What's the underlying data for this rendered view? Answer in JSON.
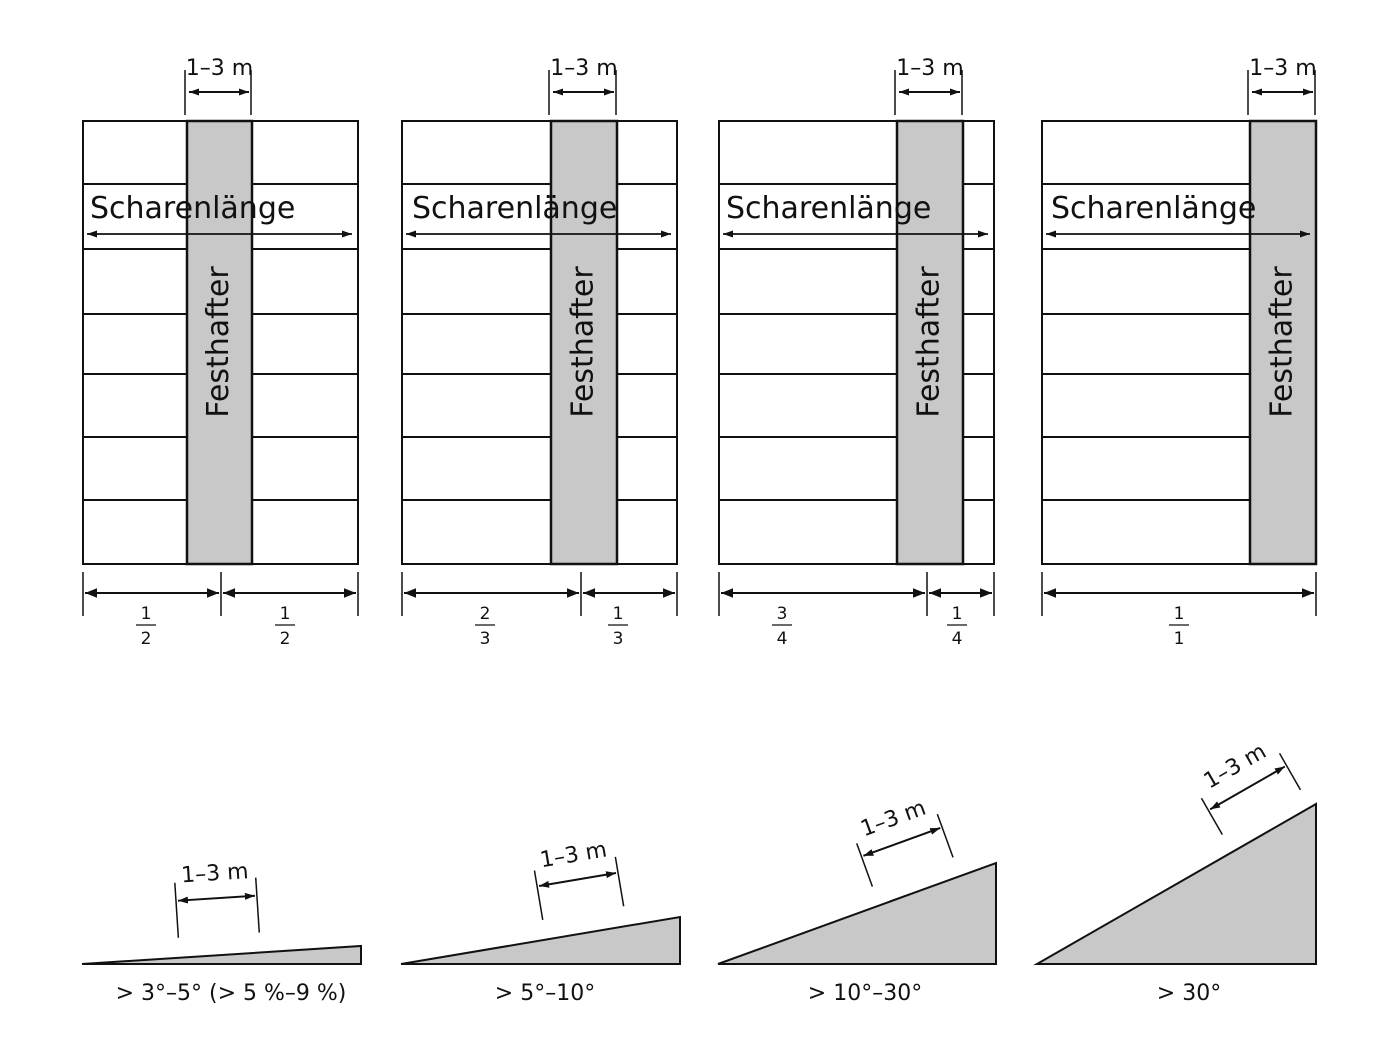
{
  "panels": [
    {
      "scharen_label": "Scharenlänge",
      "festhafter_label": "Festhafter",
      "width_label": "1–3 m",
      "fractions": [
        {
          "num": "1",
          "den": "2"
        },
        {
          "num": "1",
          "den": "2"
        }
      ]
    },
    {
      "scharen_label": "Scharenlänge",
      "festhafter_label": "Festhafter",
      "width_label": "1–3 m",
      "fractions": [
        {
          "num": "2",
          "den": "3"
        },
        {
          "num": "1",
          "den": "3"
        }
      ]
    },
    {
      "scharen_label": "Scharenlänge",
      "festhafter_label": "Festhafter",
      "width_label": "1–3 m",
      "fractions": [
        {
          "num": "3",
          "den": "4"
        },
        {
          "num": "1",
          "den": "4"
        }
      ]
    },
    {
      "scharen_label": "Scharenlänge",
      "festhafter_label": "Festhafter",
      "width_label": "1–3 m",
      "fractions": [
        {
          "num": "1",
          "den": "1"
        }
      ]
    }
  ],
  "slopes": [
    {
      "measure_label": "1–3 m",
      "caption": "> 3°–5° (> 5 %–9 %)"
    },
    {
      "measure_label": "1–3 m",
      "caption": "> 5°–10°"
    },
    {
      "measure_label": "1–3 m",
      "caption": "> 10°–30°"
    },
    {
      "measure_label": "1–3 m",
      "caption": "> 30°"
    }
  ],
  "colors": {
    "stroke": "#111111",
    "fill_gray": "#c8c8c8"
  }
}
